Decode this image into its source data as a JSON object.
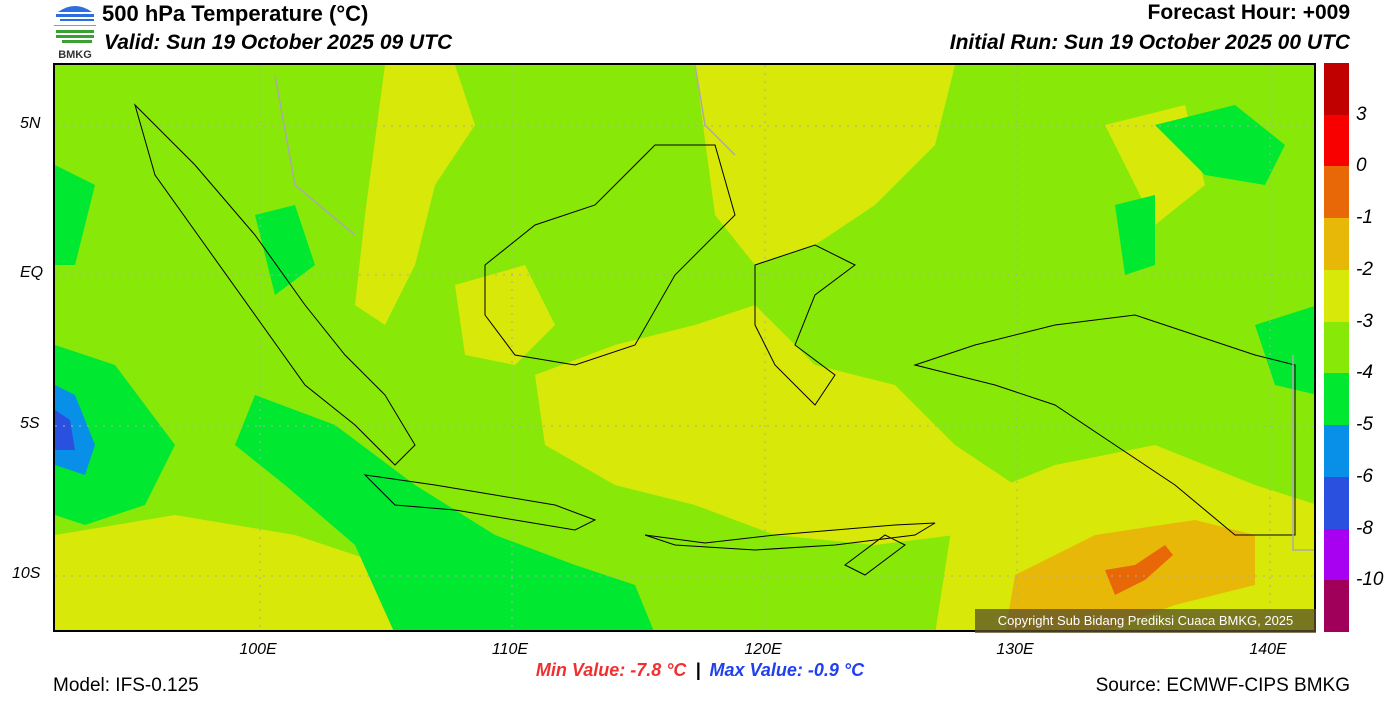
{
  "header": {
    "title": "500 hPa Temperature (°C)",
    "valid": "Valid: Sun 19 October 2025 09 UTC",
    "forecast_hour": "Forecast Hour: +009",
    "initial_run": "Initial Run: Sun 19 October 2025 00 UTC",
    "logo_text": "BMKG"
  },
  "map": {
    "lat_labels": [
      "5N",
      "EQ",
      "5S",
      "10S"
    ],
    "lon_labels": [
      "100E",
      "110E",
      "120E",
      "130E",
      "140E"
    ],
    "copyright": "Copyright Sub Bidang Prediksi Cuaca BMKG, 2025"
  },
  "colorbar": {
    "colors": [
      "#c00000",
      "#f80000",
      "#e86808",
      "#e8b808",
      "#d8e808",
      "#88e808",
      "#00e830",
      "#0890e8",
      "#2a50e0",
      "#a800f0",
      "#a0005a"
    ],
    "labels": [
      "3",
      "0",
      "-1",
      "-2",
      "-3",
      "-4",
      "-5",
      "-6",
      "-8",
      "-10"
    ]
  },
  "footer": {
    "min_value": "Min Value: -7.8 °C",
    "separator": "|",
    "max_value": "Max Value: -0.9 °C",
    "model": "Model: IFS-0.125",
    "source": "Source: ECMWF-CIPS BMKG"
  }
}
